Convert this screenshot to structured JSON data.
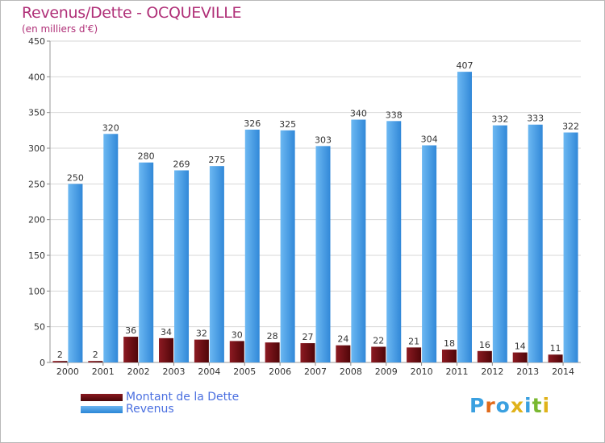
{
  "title": "Revenus/Dette - OCQUEVILLE",
  "subtitle": "(en milliers d'€)",
  "logo": {
    "text": "Proxiti",
    "colors": [
      "#3aa0e0",
      "#e06a1a",
      "#3aa0e0",
      "#e0b21a",
      "#3aa0e0",
      "#7ab830",
      "#e0b21a"
    ]
  },
  "colors": {
    "dette": "#6b0d12",
    "revenus": "#4a9fe3",
    "grid": "#d7d7d7",
    "title": "#b03078",
    "legend_text": "#4a6fe0"
  },
  "chart_data": {
    "type": "bar",
    "categories": [
      "2000",
      "2001",
      "2002",
      "2003",
      "2004",
      "2005",
      "2006",
      "2007",
      "2008",
      "2009",
      "2010",
      "2011",
      "2012",
      "2013",
      "2014"
    ],
    "series": [
      {
        "name": "Montant de la Dette",
        "values": [
          2,
          2,
          36,
          34,
          32,
          30,
          28,
          27,
          24,
          22,
          21,
          18,
          16,
          14,
          11
        ]
      },
      {
        "name": "Revenus",
        "values": [
          250,
          320,
          280,
          269,
          275,
          326,
          325,
          303,
          340,
          338,
          304,
          407,
          332,
          333,
          322
        ]
      }
    ],
    "ylim": [
      0,
      450
    ],
    "yticks": [
      0,
      50,
      100,
      150,
      200,
      250,
      300,
      350,
      400,
      450
    ],
    "grid": true,
    "legend_position": "bottom-left"
  }
}
